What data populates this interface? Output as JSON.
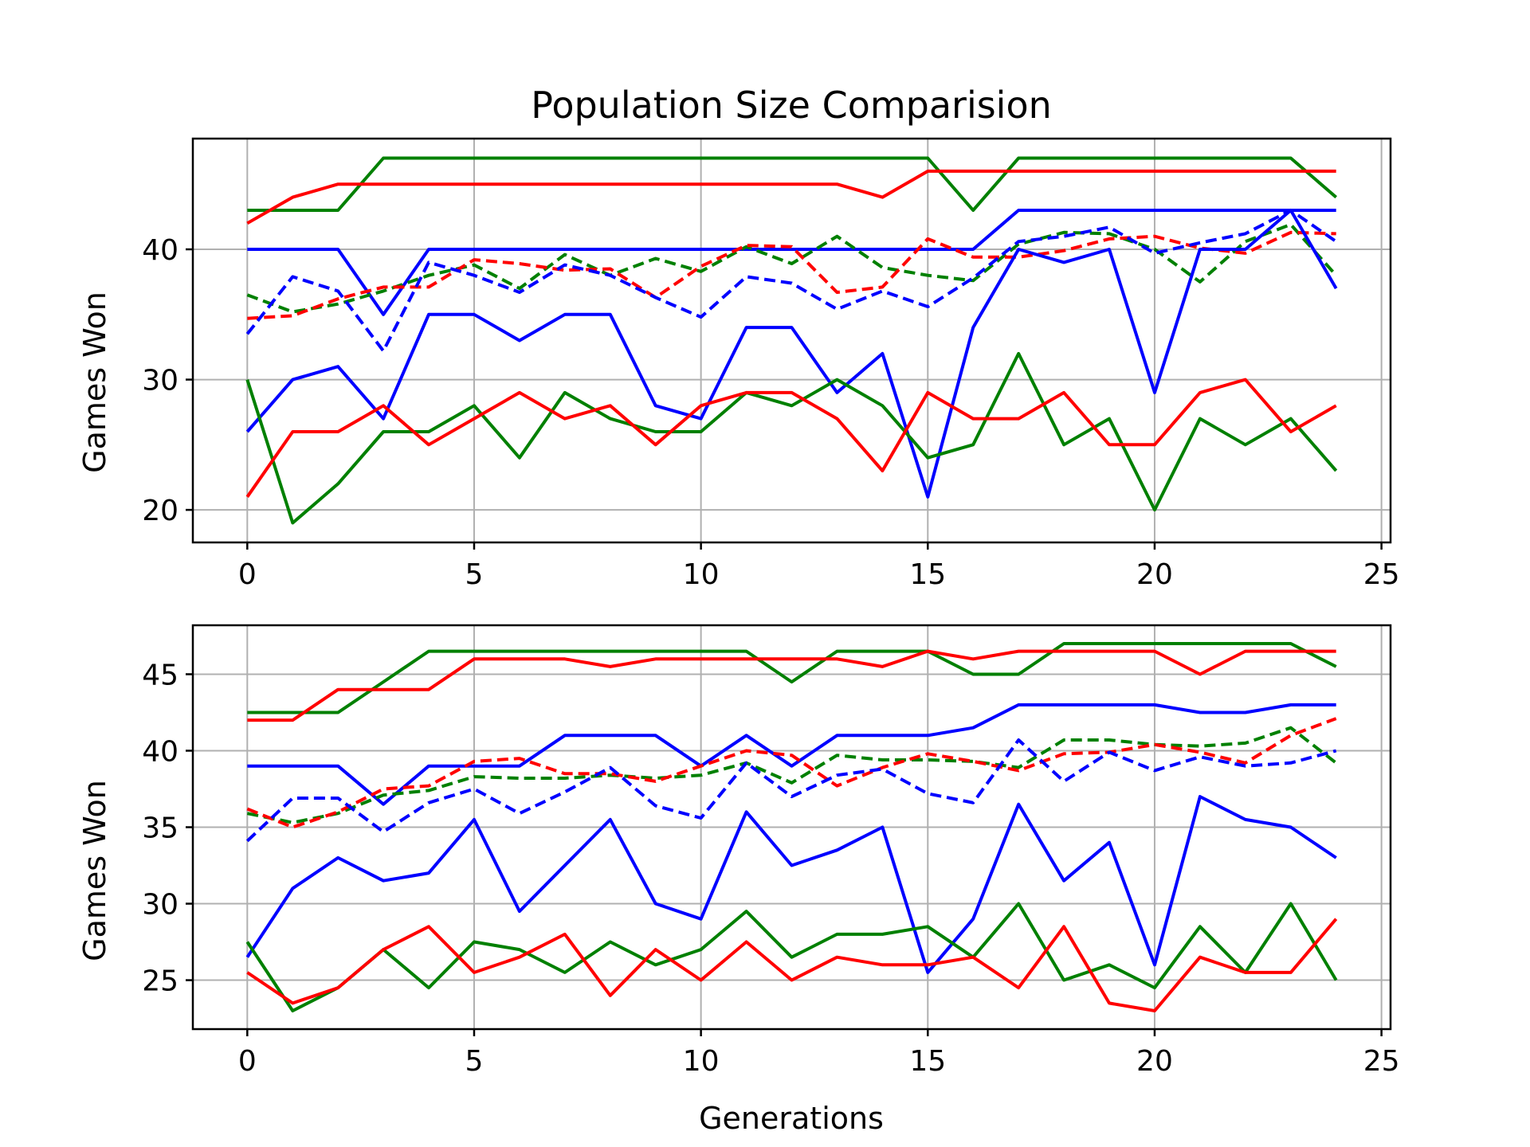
{
  "colors": {
    "blue": "#0000ff",
    "green": "#008000",
    "red": "#ff0000"
  },
  "chart_data": [
    {
      "type": "line",
      "title": "Population Size Comparision",
      "xlabel": "",
      "ylabel": "Games Won",
      "xlim": [
        -1.2,
        25.2
      ],
      "ylim": [
        17.5,
        48.5
      ],
      "xticks": [
        0,
        5,
        10,
        15,
        20,
        25
      ],
      "yticks": [
        20,
        30,
        40
      ],
      "grid": true,
      "x": [
        0,
        1,
        2,
        3,
        4,
        5,
        6,
        7,
        8,
        9,
        10,
        11,
        12,
        13,
        14,
        15,
        16,
        17,
        18,
        19,
        20,
        21,
        22,
        23,
        24
      ],
      "series": [
        {
          "color": "#008000",
          "style": "solid",
          "values": [
            43,
            43,
            43,
            47,
            47,
            47,
            47,
            47,
            47,
            47,
            47,
            47,
            47,
            47,
            47,
            47,
            43,
            47,
            47,
            47,
            47,
            47,
            47,
            47,
            44
          ]
        },
        {
          "color": "#ff0000",
          "style": "solid",
          "values": [
            42,
            44,
            45,
            45,
            45,
            45,
            45,
            45,
            45,
            45,
            45,
            45,
            45,
            45,
            44,
            46,
            46,
            46,
            46,
            46,
            46,
            46,
            46,
            46,
            46
          ]
        },
        {
          "color": "#0000ff",
          "style": "solid",
          "values": [
            40,
            40,
            40,
            35,
            40,
            40,
            40,
            40,
            40,
            40,
            40,
            40,
            40,
            40,
            40,
            40,
            40,
            43,
            43,
            43,
            43,
            43,
            43,
            43,
            43
          ]
        },
        {
          "color": "#008000",
          "style": "dashed",
          "values": [
            36.5,
            35.2,
            35.8,
            36.8,
            38.0,
            38.8,
            37.0,
            39.6,
            38.0,
            39.3,
            38.3,
            40.2,
            38.9,
            41.0,
            38.6,
            38.0,
            37.6,
            40.4,
            41.3,
            41.2,
            40.0,
            37.5,
            40.6,
            41.9,
            38.0
          ]
        },
        {
          "color": "#ff0000",
          "style": "dashed",
          "values": [
            34.7,
            34.9,
            36.2,
            37.1,
            37.1,
            39.2,
            38.9,
            38.4,
            38.5,
            36.3,
            38.7,
            40.3,
            40.2,
            36.7,
            37.1,
            40.8,
            39.4,
            39.4,
            39.9,
            40.8,
            41.0,
            40.1,
            39.7,
            41.3,
            41.2
          ]
        },
        {
          "color": "#0000ff",
          "style": "dashed",
          "values": [
            33.5,
            37.9,
            36.8,
            32.2,
            39.0,
            38.0,
            36.7,
            38.8,
            38.0,
            36.3,
            34.8,
            37.9,
            37.4,
            35.4,
            36.8,
            35.6,
            37.8,
            40.6,
            41.0,
            41.7,
            39.7,
            40.5,
            41.2,
            43.0,
            40.6
          ]
        },
        {
          "color": "#0000ff",
          "style": "solid",
          "values": [
            26,
            30,
            31,
            27,
            35,
            35,
            33,
            35,
            35,
            28,
            27,
            34,
            34,
            29,
            32,
            21,
            34,
            40,
            39,
            40,
            29,
            40,
            40,
            43,
            37
          ]
        },
        {
          "color": "#008000",
          "style": "solid",
          "values": [
            30,
            19,
            22,
            26,
            26,
            28,
            24,
            29,
            27,
            26,
            26,
            29,
            28,
            30,
            28,
            24,
            25,
            32,
            25,
            27,
            20,
            27,
            25,
            27,
            23
          ]
        },
        {
          "color": "#ff0000",
          "style": "solid",
          "values": [
            21,
            26,
            26,
            28,
            25,
            27,
            29,
            27,
            28,
            25,
            28,
            29,
            29,
            27,
            23,
            29,
            27,
            27,
            29,
            25,
            25,
            29,
            30,
            26,
            28
          ]
        }
      ]
    },
    {
      "type": "line",
      "title": "",
      "xlabel": "Generations",
      "ylabel": "Games Won",
      "xlim": [
        -1.2,
        25.2
      ],
      "ylim": [
        21.8,
        48.2
      ],
      "xticks": [
        0,
        5,
        10,
        15,
        20,
        25
      ],
      "yticks": [
        25,
        30,
        35,
        40,
        45
      ],
      "grid": true,
      "x": [
        0,
        1,
        2,
        3,
        4,
        5,
        6,
        7,
        8,
        9,
        10,
        11,
        12,
        13,
        14,
        15,
        16,
        17,
        18,
        19,
        20,
        21,
        22,
        23,
        24
      ],
      "series": [
        {
          "color": "#008000",
          "style": "solid",
          "values": [
            42.5,
            42.5,
            42.5,
            44.5,
            46.5,
            46.5,
            46.5,
            46.5,
            46.5,
            46.5,
            46.5,
            46.5,
            44.5,
            46.5,
            46.5,
            46.5,
            45,
            45,
            47,
            47,
            47,
            47,
            47,
            47,
            45.5
          ]
        },
        {
          "color": "#ff0000",
          "style": "solid",
          "values": [
            42,
            42,
            44,
            44,
            44,
            46,
            46,
            46,
            45.5,
            46,
            46,
            46,
            46,
            46,
            45.5,
            46.5,
            46,
            46.5,
            46.5,
            46.5,
            46.5,
            45,
            46.5,
            46.5,
            46.5
          ]
        },
        {
          "color": "#0000ff",
          "style": "solid",
          "values": [
            39,
            39,
            39,
            36.5,
            39,
            39,
            39,
            41,
            41,
            41,
            39,
            41,
            39,
            41,
            41,
            41,
            41.5,
            43,
            43,
            43,
            43,
            42.5,
            42.5,
            43,
            43
          ]
        },
        {
          "color": "#008000",
          "style": "dashed",
          "values": [
            35.9,
            35.3,
            35.9,
            37.1,
            37.4,
            38.3,
            38.2,
            38.2,
            38.4,
            38.2,
            38.4,
            39.2,
            37.9,
            39.7,
            39.4,
            39.4,
            39.3,
            38.9,
            40.7,
            40.7,
            40.4,
            40.3,
            40.5,
            41.5,
            39.2
          ]
        },
        {
          "color": "#ff0000",
          "style": "dashed",
          "values": [
            36.2,
            35.0,
            36.0,
            37.5,
            37.7,
            39.3,
            39.5,
            38.5,
            38.5,
            38.0,
            39.0,
            40.0,
            39.7,
            37.7,
            38.9,
            39.8,
            39.3,
            38.7,
            39.8,
            39.9,
            40.4,
            39.9,
            39.2,
            41.0,
            42.1
          ]
        },
        {
          "color": "#0000ff",
          "style": "dashed",
          "values": [
            34.1,
            36.9,
            36.9,
            34.7,
            36.6,
            37.5,
            35.9,
            37.3,
            38.9,
            36.4,
            35.6,
            39.2,
            37.0,
            38.4,
            38.8,
            37.2,
            36.6,
            40.7,
            38.0,
            39.9,
            38.7,
            39.6,
            39.0,
            39.2,
            40.0
          ]
        },
        {
          "color": "#0000ff",
          "style": "solid",
          "values": [
            26.5,
            31,
            33,
            31.5,
            32,
            35.5,
            29.5,
            32.5,
            35.5,
            30,
            29,
            36,
            32.5,
            33.5,
            35,
            25.5,
            29,
            36.5,
            31.5,
            34,
            26,
            37,
            35.5,
            35,
            33
          ]
        },
        {
          "color": "#008000",
          "style": "solid",
          "values": [
            27.5,
            23,
            24.5,
            27,
            24.5,
            27.5,
            27,
            25.5,
            27.5,
            26,
            27,
            29.5,
            26.5,
            28,
            28,
            28.5,
            26.5,
            30,
            25,
            26,
            24.5,
            28.5,
            25.5,
            30,
            25
          ]
        },
        {
          "color": "#ff0000",
          "style": "solid",
          "values": [
            25.5,
            23.5,
            24.5,
            27,
            28.5,
            25.5,
            26.5,
            28,
            24,
            27,
            25,
            27.5,
            25,
            26.5,
            26,
            26,
            26.5,
            24.5,
            28.5,
            23.5,
            23,
            26.5,
            25.5,
            25.5,
            29
          ]
        }
      ]
    }
  ]
}
